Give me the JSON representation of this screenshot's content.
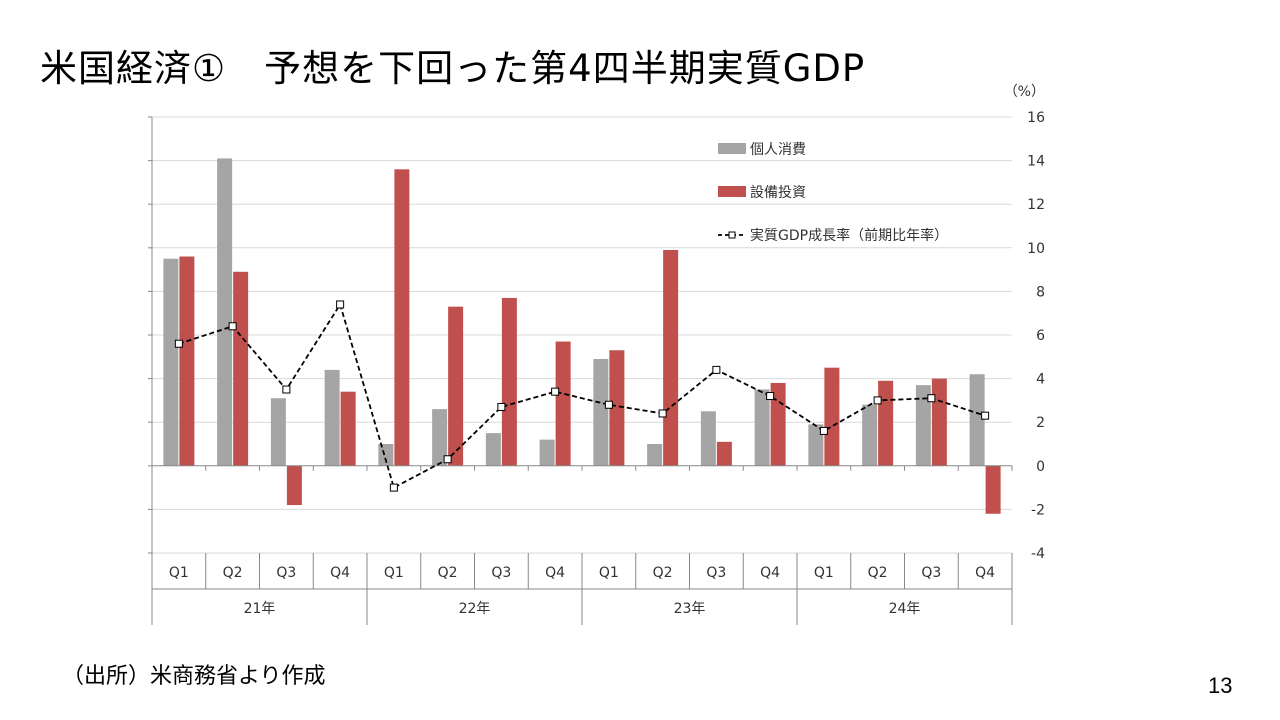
{
  "slide": {
    "title": "米国経済①　予想を下回った第4四半期実質GDP",
    "source": "（出所）米商務省より作成",
    "page_number": "13"
  },
  "chart_data": {
    "type": "bar",
    "unit_label": "（%）",
    "ylim": [
      -4,
      16
    ],
    "yticks": [
      -4,
      -2,
      0,
      2,
      4,
      6,
      8,
      10,
      12,
      14,
      16
    ],
    "y_axis_side": "right",
    "grid": true,
    "legend_position": "top-right",
    "categories": [
      "Q1",
      "Q2",
      "Q3",
      "Q4",
      "Q1",
      "Q2",
      "Q3",
      "Q4",
      "Q1",
      "Q2",
      "Q3",
      "Q4",
      "Q1",
      "Q2",
      "Q3",
      "Q4"
    ],
    "groups": [
      "21年",
      "22年",
      "23年",
      "24年"
    ],
    "series": [
      {
        "name": "個人消費",
        "type": "bar",
        "color": "#a5a5a5",
        "values": [
          9.5,
          14.1,
          3.1,
          4.4,
          1.0,
          2.6,
          1.5,
          1.2,
          4.9,
          1.0,
          2.5,
          3.5,
          1.9,
          2.8,
          3.7,
          4.2
        ]
      },
      {
        "name": "設備投資",
        "type": "bar",
        "color": "#c0504d",
        "values": [
          9.6,
          8.9,
          -1.8,
          3.4,
          13.6,
          7.3,
          7.7,
          5.7,
          5.3,
          9.9,
          1.1,
          3.8,
          4.5,
          3.9,
          4.0,
          -2.2
        ]
      },
      {
        "name": "実質GDP成長率（前期比年率）",
        "type": "line",
        "color": "#000000",
        "style": "dashed",
        "marker": "square",
        "values": [
          5.6,
          6.4,
          3.5,
          7.4,
          -1.0,
          0.3,
          2.7,
          3.4,
          2.8,
          2.4,
          4.4,
          3.2,
          1.6,
          3.0,
          3.1,
          2.3
        ]
      }
    ]
  }
}
